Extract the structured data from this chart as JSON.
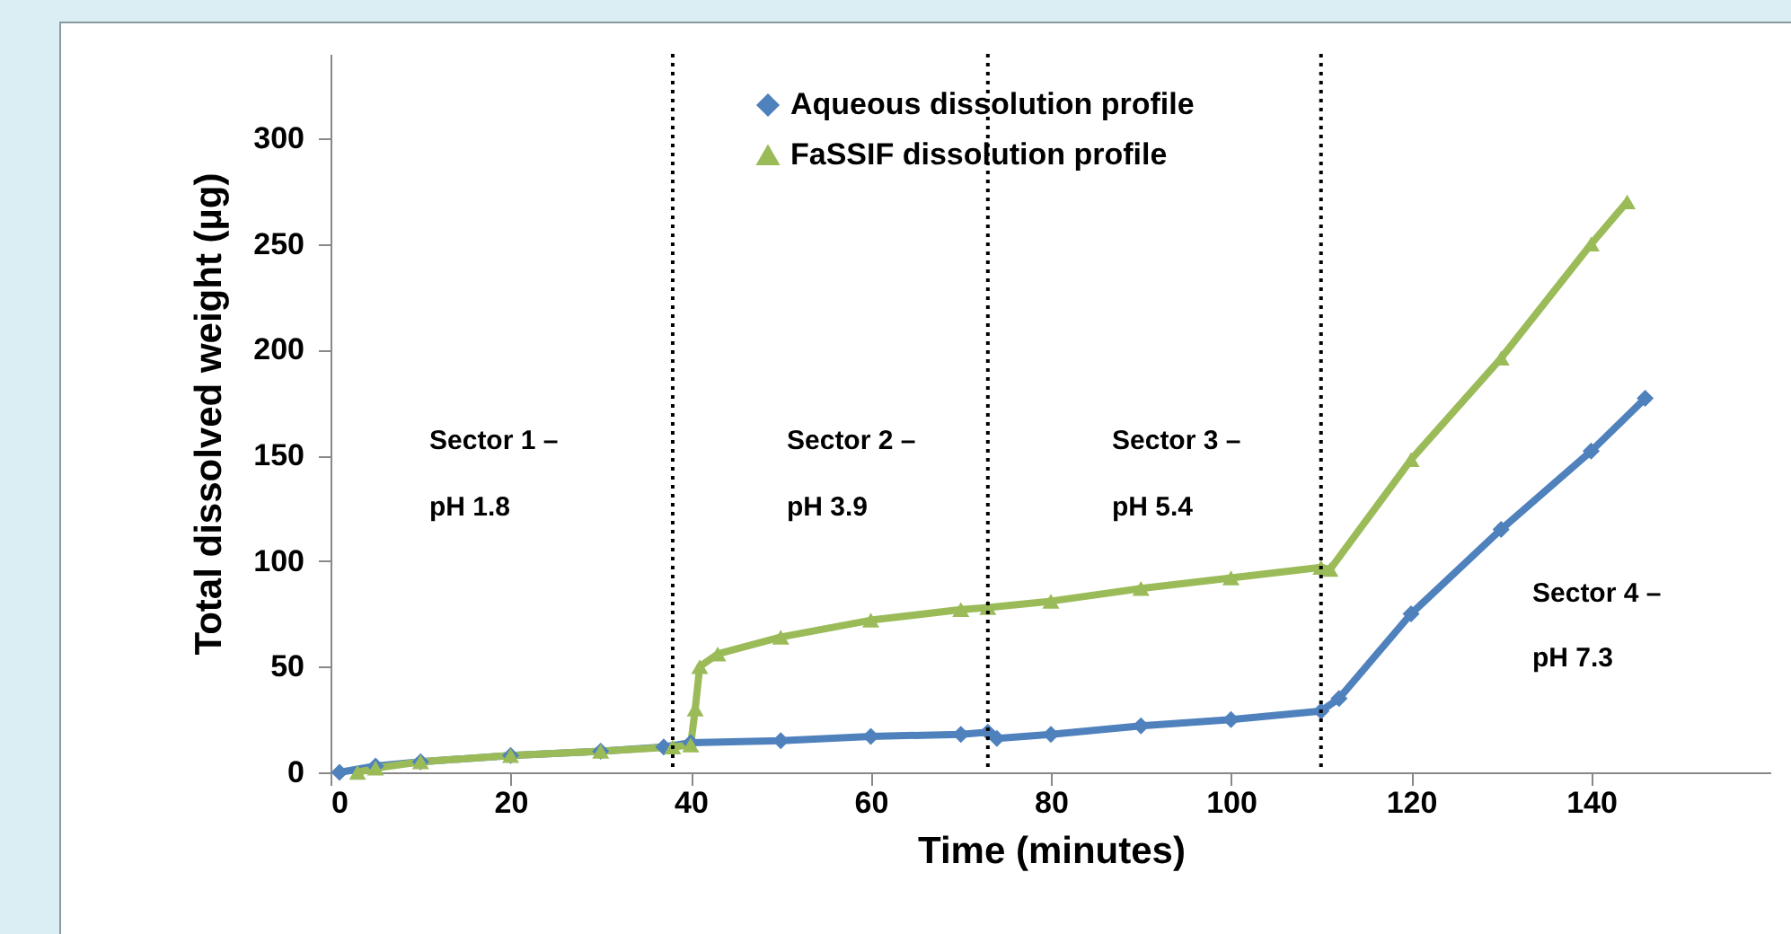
{
  "chart_data": {
    "type": "line",
    "xlabel": "Time (minutes)",
    "ylabel": "Total dissolved weight (µg)",
    "xlim": [
      0,
      160
    ],
    "xticks": [
      0,
      20,
      40,
      60,
      80,
      100,
      120,
      140
    ],
    "ylim": [
      0,
      340
    ],
    "yticks": [
      0,
      50,
      100,
      150,
      200,
      250,
      300
    ],
    "grid": false,
    "legend": "top",
    "line_style": "solid",
    "series": [
      {
        "name": "Aqueous dissolution profile",
        "color": "#4f81bd",
        "marker": "diamond",
        "x": [
          1,
          5,
          10,
          20,
          30,
          37,
          40,
          50,
          60,
          70,
          73,
          74,
          80,
          90,
          100,
          110,
          112,
          120,
          130,
          140,
          146
        ],
        "values": [
          0,
          3,
          5,
          8,
          10,
          12,
          14,
          15,
          17,
          18,
          19,
          16,
          18,
          22,
          25,
          29,
          35,
          75,
          115,
          152,
          177
        ]
      },
      {
        "name": "FaSSIF dissolution profile",
        "color": "#9bbb59",
        "marker": "triangle",
        "x": [
          3,
          5,
          10,
          20,
          30,
          38,
          40,
          40.5,
          41,
          43,
          50,
          60,
          70,
          73,
          80,
          90,
          100,
          110,
          111,
          120,
          130,
          140,
          144
        ],
        "values": [
          0,
          2,
          5,
          8,
          10,
          12,
          13,
          30,
          50,
          56,
          64,
          72,
          77,
          78,
          81,
          87,
          92,
          97,
          96,
          148,
          196,
          250,
          270
        ]
      }
    ],
    "ref_lines": [
      {
        "axis": "x",
        "value": 38,
        "color": "#000000",
        "line_style": "dotted"
      },
      {
        "axis": "x",
        "value": 73,
        "color": "#000000",
        "line_style": "dotted"
      },
      {
        "axis": "x",
        "value": 110,
        "color": "#000000",
        "line_style": "dotted"
      }
    ],
    "annotations": [
      "Sector 1 –",
      "pH 1.8",
      "Sector 2 –",
      "pH 3.9",
      "Sector 3 –",
      "pH 5.4",
      "Sector 4 –",
      "pH 7.3"
    ]
  }
}
